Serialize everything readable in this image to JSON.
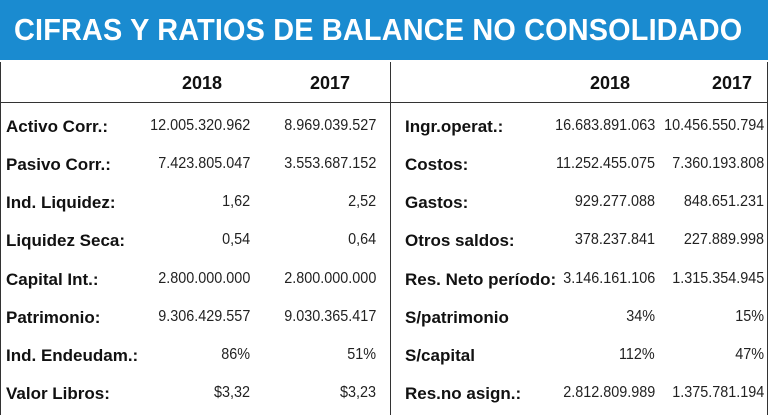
{
  "title": "CIFRAS Y RATIOS DE BALANCE NO CONSOLIDADO",
  "colors": {
    "header_bg": "#1a8bd0",
    "header_text": "#ffffff"
  },
  "left_table": {
    "headers": [
      "2018",
      "2017"
    ],
    "rows": [
      {
        "label": "Activo Corr.:",
        "v2018": "12.005.320.962",
        "v2017": "8.969.039.527"
      },
      {
        "label": "Pasivo Corr.:",
        "v2018": "7.423.805.047",
        "v2017": "3.553.687.152"
      },
      {
        "label": "Ind. Liquidez:",
        "v2018": "1,62",
        "v2017": "2,52"
      },
      {
        "label": "Liquidez Seca:",
        "v2018": "0,54",
        "v2017": "0,64"
      },
      {
        "label": "Capital Int.:",
        "v2018": "2.800.000.000",
        "v2017": "2.800.000.000"
      },
      {
        "label": "Patrimonio:",
        "v2018": "9.306.429.557",
        "v2017": "9.030.365.417"
      },
      {
        "label": "Ind. Endeudam.:",
        "v2018": "86%",
        "v2017": "51%"
      },
      {
        "label": "Valor Libros:",
        "v2018": "$3,32",
        "v2017": "$3,23"
      }
    ]
  },
  "right_table": {
    "headers": [
      "2018",
      "2017"
    ],
    "rows": [
      {
        "label": "Ingr.operat.:",
        "v2018": "16.683.891.063",
        "v2017": "10.456.550.794"
      },
      {
        "label": "Costos:",
        "v2018": "11.252.455.075",
        "v2017": "7.360.193.808"
      },
      {
        "label": "Gastos:",
        "v2018": "929.277.088",
        "v2017": "848.651.231"
      },
      {
        "label": "Otros saldos:",
        "v2018": "378.237.841",
        "v2017": "227.889.998"
      },
      {
        "label": "Res. Neto período:",
        "v2018": "3.146.161.106",
        "v2017": "1.315.354.945"
      },
      {
        "label": "S/patrimonio",
        "v2018": "34%",
        "v2017": "15%"
      },
      {
        "label": "S/capital",
        "v2018": "112%",
        "v2017": "47%"
      },
      {
        "label": "Res.no asign.:",
        "v2018": "2.812.809.989",
        "v2017": "1.375.781.194"
      }
    ]
  }
}
